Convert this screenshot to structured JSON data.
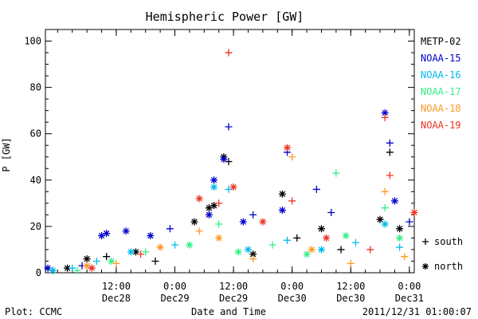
{
  "chart_data": {
    "type": "scatter",
    "title": "Hemispheric Power [GW]",
    "xlabel": "Date and Time",
    "ylabel": "P [GW]",
    "ylim": [
      0,
      105
    ],
    "yticks": [
      0,
      20,
      40,
      60,
      80,
      100
    ],
    "xlim": [
      "2011-12-27 21:30",
      "2011-12-31 01:00"
    ],
    "xticks": [
      {
        "time": "2011-12-28 12:00",
        "label": "12:00",
        "date": "Dec28"
      },
      {
        "time": "2011-12-29 00:00",
        "label": "0:00",
        "date": "Dec29"
      },
      {
        "time": "2011-12-29 12:00",
        "label": "12:00",
        "date": "Dec29"
      },
      {
        "time": "2011-12-30 00:00",
        "label": "0:00",
        "date": "Dec30"
      },
      {
        "time": "2011-12-30 12:00",
        "label": "12:00",
        "date": "Dec30"
      },
      {
        "time": "2011-12-31 00:00",
        "label": "0:00",
        "date": "Dec31"
      }
    ],
    "grid": false,
    "legend_position": "right",
    "marker_legend": [
      {
        "symbol": "+",
        "label": "south"
      },
      {
        "symbol": "*",
        "label": "north"
      }
    ],
    "series": [
      {
        "name": "METP-02",
        "color": "#000000",
        "points": [
          {
            "t": "2011-12-27 23:00",
            "v": 1,
            "h": "s"
          },
          {
            "t": "2011-12-28 02:00",
            "v": 2,
            "h": "n"
          },
          {
            "t": "2011-12-28 06:00",
            "v": 6,
            "h": "n"
          },
          {
            "t": "2011-12-28 10:00",
            "v": 7,
            "h": "s"
          },
          {
            "t": "2011-12-28 16:00",
            "v": 9,
            "h": "n"
          },
          {
            "t": "2011-12-28 20:00",
            "v": 5,
            "h": "s"
          },
          {
            "t": "2011-12-29 04:00",
            "v": 22,
            "h": "n"
          },
          {
            "t": "2011-12-29 07:00",
            "v": 28,
            "h": "n"
          },
          {
            "t": "2011-12-29 08:00",
            "v": 29,
            "h": "n"
          },
          {
            "t": "2011-12-29 10:00",
            "v": 50,
            "h": "n"
          },
          {
            "t": "2011-12-29 11:00",
            "v": 48,
            "h": "s"
          },
          {
            "t": "2011-12-29 16:00",
            "v": 8,
            "h": "n"
          },
          {
            "t": "2011-12-29 22:00",
            "v": 34,
            "h": "n"
          },
          {
            "t": "2011-12-30 01:00",
            "v": 15,
            "h": "s"
          },
          {
            "t": "2011-12-30 06:00",
            "v": 19,
            "h": "n"
          },
          {
            "t": "2011-12-30 10:00",
            "v": 10,
            "h": "s"
          },
          {
            "t": "2011-12-30 18:00",
            "v": 23,
            "h": "n"
          },
          {
            "t": "2011-12-30 20:00",
            "v": 52,
            "h": "s"
          },
          {
            "t": "2011-12-30 22:00",
            "v": 19,
            "h": "n"
          }
        ]
      },
      {
        "name": "NOAA-15",
        "color": "#0000cc",
        "points": [
          {
            "t": "2011-12-27 22:00",
            "v": 2,
            "h": "n"
          },
          {
            "t": "2011-12-28 05:00",
            "v": 3,
            "h": "s"
          },
          {
            "t": "2011-12-28 09:00",
            "v": 16,
            "h": "n"
          },
          {
            "t": "2011-12-28 10:00",
            "v": 17,
            "h": "n"
          },
          {
            "t": "2011-12-28 14:00",
            "v": 18,
            "h": "n"
          },
          {
            "t": "2011-12-28 19:00",
            "v": 16,
            "h": "n"
          },
          {
            "t": "2011-12-28 23:00",
            "v": 19,
            "h": "s"
          },
          {
            "t": "2011-12-29 07:00",
            "v": 25,
            "h": "n"
          },
          {
            "t": "2011-12-29 08:00",
            "v": 40,
            "h": "n"
          },
          {
            "t": "2011-12-29 10:00",
            "v": 49,
            "h": "n"
          },
          {
            "t": "2011-12-29 11:00",
            "v": 63,
            "h": "s"
          },
          {
            "t": "2011-12-29 14:00",
            "v": 22,
            "h": "n"
          },
          {
            "t": "2011-12-29 16:00",
            "v": 25,
            "h": "s"
          },
          {
            "t": "2011-12-29 22:00",
            "v": 27,
            "h": "n"
          },
          {
            "t": "2011-12-29 23:00",
            "v": 52,
            "h": "s"
          },
          {
            "t": "2011-12-30 05:00",
            "v": 36,
            "h": "s"
          },
          {
            "t": "2011-12-30 08:00",
            "v": 26,
            "h": "s"
          },
          {
            "t": "2011-12-30 19:00",
            "v": 69,
            "h": "n"
          },
          {
            "t": "2011-12-30 20:00",
            "v": 56,
            "h": "s"
          },
          {
            "t": "2011-12-30 21:00",
            "v": 31,
            "h": "n"
          },
          {
            "t": "2011-12-31 00:00",
            "v": 22,
            "h": "s"
          }
        ]
      },
      {
        "name": "NOAA-16",
        "color": "#00bbee",
        "points": [
          {
            "t": "2011-12-27 23:00",
            "v": 1,
            "h": "n"
          },
          {
            "t": "2011-12-28 03:00",
            "v": 2,
            "h": "s"
          },
          {
            "t": "2011-12-28 08:00",
            "v": 5,
            "h": "s"
          },
          {
            "t": "2011-12-28 15:00",
            "v": 9,
            "h": "n"
          },
          {
            "t": "2011-12-29 00:00",
            "v": 12,
            "h": "s"
          },
          {
            "t": "2011-12-29 08:00",
            "v": 37,
            "h": "n"
          },
          {
            "t": "2011-12-29 11:00",
            "v": 36,
            "h": "s"
          },
          {
            "t": "2011-12-29 15:00",
            "v": 10,
            "h": "n"
          },
          {
            "t": "2011-12-29 23:00",
            "v": 14,
            "h": "s"
          },
          {
            "t": "2011-12-30 06:00",
            "v": 10,
            "h": "n"
          },
          {
            "t": "2011-12-30 13:00",
            "v": 13,
            "h": "s"
          },
          {
            "t": "2011-12-30 19:00",
            "v": 21,
            "h": "n"
          },
          {
            "t": "2011-12-30 22:00",
            "v": 11,
            "h": "s"
          }
        ]
      },
      {
        "name": "NOAA-17",
        "color": "#33ee88",
        "points": [
          {
            "t": "2011-12-28 04:00",
            "v": 1,
            "h": "s"
          },
          {
            "t": "2011-12-28 11:00",
            "v": 5,
            "h": "n"
          },
          {
            "t": "2011-12-28 18:00",
            "v": 9,
            "h": "s"
          },
          {
            "t": "2011-12-29 03:00",
            "v": 12,
            "h": "n"
          },
          {
            "t": "2011-12-29 09:00",
            "v": 21,
            "h": "s"
          },
          {
            "t": "2011-12-29 13:00",
            "v": 9,
            "h": "n"
          },
          {
            "t": "2011-12-29 20:00",
            "v": 12,
            "h": "s"
          },
          {
            "t": "2011-12-30 03:00",
            "v": 8,
            "h": "n"
          },
          {
            "t": "2011-12-30 09:00",
            "v": 43,
            "h": "s"
          },
          {
            "t": "2011-12-30 11:00",
            "v": 16,
            "h": "n"
          },
          {
            "t": "2011-12-30 19:00",
            "v": 28,
            "h": "s"
          },
          {
            "t": "2011-12-30 22:00",
            "v": 15,
            "h": "n"
          }
        ]
      },
      {
        "name": "NOAA-18",
        "color": "#ff9922",
        "points": [
          {
            "t": "2011-12-28 06:00",
            "v": 3,
            "h": "n"
          },
          {
            "t": "2011-12-28 12:00",
            "v": 4,
            "h": "s"
          },
          {
            "t": "2011-12-28 21:00",
            "v": 11,
            "h": "n"
          },
          {
            "t": "2011-12-29 05:00",
            "v": 18,
            "h": "s"
          },
          {
            "t": "2011-12-29 09:00",
            "v": 15,
            "h": "n"
          },
          {
            "t": "2011-12-29 16:00",
            "v": 6,
            "h": "s"
          },
          {
            "t": "2011-12-30 00:00",
            "v": 50,
            "h": "s"
          },
          {
            "t": "2011-12-30 04:00",
            "v": 10,
            "h": "n"
          },
          {
            "t": "2011-12-30 12:00",
            "v": 4,
            "h": "s"
          },
          {
            "t": "2011-12-30 19:00",
            "v": 35,
            "h": "s"
          },
          {
            "t": "2011-12-30 23:00",
            "v": 7,
            "h": "s"
          }
        ]
      },
      {
        "name": "NOAA-19",
        "color": "#ee3322",
        "points": [
          {
            "t": "2011-12-28 07:00",
            "v": 2,
            "h": "n"
          },
          {
            "t": "2011-12-28 17:00",
            "v": 8,
            "h": "s"
          },
          {
            "t": "2011-12-29 05:00",
            "v": 32,
            "h": "n"
          },
          {
            "t": "2011-12-29 09:00",
            "v": 30,
            "h": "s"
          },
          {
            "t": "2011-12-29 11:00",
            "v": 95,
            "h": "s"
          },
          {
            "t": "2011-12-29 12:00",
            "v": 37,
            "h": "n"
          },
          {
            "t": "2011-12-29 18:00",
            "v": 22,
            "h": "n"
          },
          {
            "t": "2011-12-29 23:00",
            "v": 54,
            "h": "n"
          },
          {
            "t": "2011-12-30 00:00",
            "v": 31,
            "h": "s"
          },
          {
            "t": "2011-12-30 07:00",
            "v": 15,
            "h": "n"
          },
          {
            "t": "2011-12-30 16:00",
            "v": 10,
            "h": "s"
          },
          {
            "t": "2011-12-30 19:00",
            "v": 67,
            "h": "s"
          },
          {
            "t": "2011-12-30 20:00",
            "v": 42,
            "h": "s"
          },
          {
            "t": "2011-12-31 01:00",
            "v": 26,
            "h": "n"
          }
        ]
      }
    ]
  },
  "footer": {
    "plot_label": "Plot: CCMC",
    "timestamp": "2011/12/31 01:00:07"
  }
}
